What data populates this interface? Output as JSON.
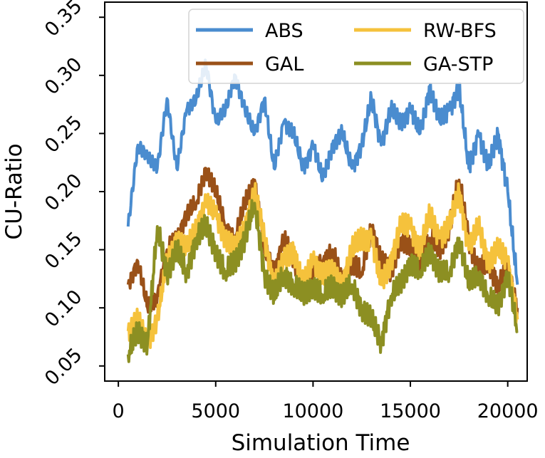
{
  "chart_data": {
    "type": "line",
    "title": "",
    "xlabel": "Simulation Time",
    "ylabel": "CU-Ratio",
    "xlim": [
      -700,
      21000
    ],
    "ylim": [
      0.037,
      0.363
    ],
    "xticks": [
      0,
      5000,
      10000,
      15000,
      20000
    ],
    "xtick_labels": [
      "0",
      "5000",
      "10000",
      "15000",
      "20000"
    ],
    "yticks": [
      0.05,
      0.1,
      0.15,
      0.2,
      0.25,
      0.3,
      0.35
    ],
    "ytick_labels": [
      "0.05",
      "0.10",
      "0.15",
      "0.20",
      "0.25",
      "0.30",
      "0.35"
    ],
    "grid": false,
    "legend": {
      "position": "top-right",
      "columns": 2
    },
    "series": [
      {
        "name": "ABS",
        "color": "#4a8ccf",
        "x": [
          500,
          1000,
          1500,
          2000,
          2500,
          3000,
          3500,
          4000,
          4500,
          5000,
          5500,
          6000,
          6500,
          7000,
          7500,
          8000,
          8500,
          9000,
          9500,
          10000,
          10500,
          11000,
          11500,
          12000,
          12500,
          13000,
          13500,
          14000,
          14500,
          15000,
          15500,
          16000,
          16500,
          17000,
          17500,
          18000,
          18500,
          19000,
          19500,
          20000,
          20500
        ],
        "values": [
          0.17,
          0.24,
          0.23,
          0.22,
          0.28,
          0.22,
          0.27,
          0.28,
          0.31,
          0.26,
          0.27,
          0.3,
          0.27,
          0.25,
          0.28,
          0.22,
          0.26,
          0.25,
          0.22,
          0.24,
          0.21,
          0.24,
          0.25,
          0.22,
          0.24,
          0.28,
          0.24,
          0.27,
          0.26,
          0.27,
          0.25,
          0.29,
          0.26,
          0.27,
          0.29,
          0.22,
          0.25,
          0.22,
          0.25,
          0.2,
          0.12
        ]
      },
      {
        "name": "GAL",
        "color": "#9a5118",
        "x": [
          500,
          1000,
          1500,
          2000,
          2500,
          3000,
          3500,
          4000,
          4500,
          5000,
          5500,
          6000,
          6500,
          7000,
          7500,
          8000,
          8500,
          9000,
          9500,
          10000,
          10500,
          11000,
          11500,
          12000,
          12500,
          13000,
          13500,
          14000,
          14500,
          15000,
          15500,
          16000,
          16500,
          17000,
          17500,
          18000,
          18500,
          19000,
          19500,
          20000,
          20500
        ],
        "values": [
          0.12,
          0.14,
          0.1,
          0.11,
          0.15,
          0.16,
          0.18,
          0.19,
          0.22,
          0.2,
          0.17,
          0.16,
          0.19,
          0.21,
          0.15,
          0.13,
          0.16,
          0.14,
          0.12,
          0.13,
          0.14,
          0.15,
          0.12,
          0.14,
          0.13,
          0.17,
          0.14,
          0.13,
          0.16,
          0.15,
          0.14,
          0.16,
          0.15,
          0.17,
          0.21,
          0.16,
          0.13,
          0.14,
          0.12,
          0.13,
          0.1
        ]
      },
      {
        "name": "RW-BFS",
        "color": "#f5c23c",
        "x": [
          500,
          1000,
          1500,
          2000,
          2500,
          3000,
          3500,
          4000,
          4500,
          5000,
          5500,
          6000,
          6500,
          7000,
          7500,
          8000,
          8500,
          9000,
          9500,
          10000,
          10500,
          11000,
          11500,
          12000,
          12500,
          13000,
          13500,
          14000,
          14500,
          15000,
          15500,
          16000,
          16500,
          17000,
          17500,
          18000,
          18500,
          19000,
          19500,
          20000,
          20500
        ],
        "values": [
          0.08,
          0.09,
          0.07,
          0.09,
          0.14,
          0.16,
          0.15,
          0.17,
          0.19,
          0.18,
          0.16,
          0.15,
          0.17,
          0.2,
          0.16,
          0.12,
          0.14,
          0.15,
          0.12,
          0.14,
          0.13,
          0.13,
          0.12,
          0.15,
          0.16,
          0.16,
          0.12,
          0.14,
          0.17,
          0.17,
          0.15,
          0.18,
          0.16,
          0.17,
          0.2,
          0.15,
          0.17,
          0.14,
          0.15,
          0.14,
          0.09
        ]
      },
      {
        "name": "GA-STP",
        "color": "#8c8f22",
        "x": [
          500,
          1000,
          1500,
          2000,
          2500,
          3000,
          3500,
          4000,
          4500,
          5000,
          5500,
          6000,
          6500,
          7000,
          7500,
          8000,
          8500,
          9000,
          9500,
          10000,
          10500,
          11000,
          11500,
          12000,
          12500,
          13000,
          13500,
          14000,
          14500,
          15000,
          15500,
          16000,
          16500,
          17000,
          17500,
          18000,
          18500,
          19000,
          19500,
          20000,
          20500
        ],
        "values": [
          0.06,
          0.08,
          0.07,
          0.17,
          0.13,
          0.15,
          0.13,
          0.16,
          0.17,
          0.15,
          0.13,
          0.14,
          0.16,
          0.19,
          0.13,
          0.11,
          0.13,
          0.12,
          0.11,
          0.12,
          0.11,
          0.12,
          0.11,
          0.12,
          0.1,
          0.09,
          0.07,
          0.11,
          0.12,
          0.14,
          0.13,
          0.15,
          0.13,
          0.13,
          0.16,
          0.12,
          0.13,
          0.11,
          0.1,
          0.13,
          0.08
        ]
      }
    ]
  }
}
